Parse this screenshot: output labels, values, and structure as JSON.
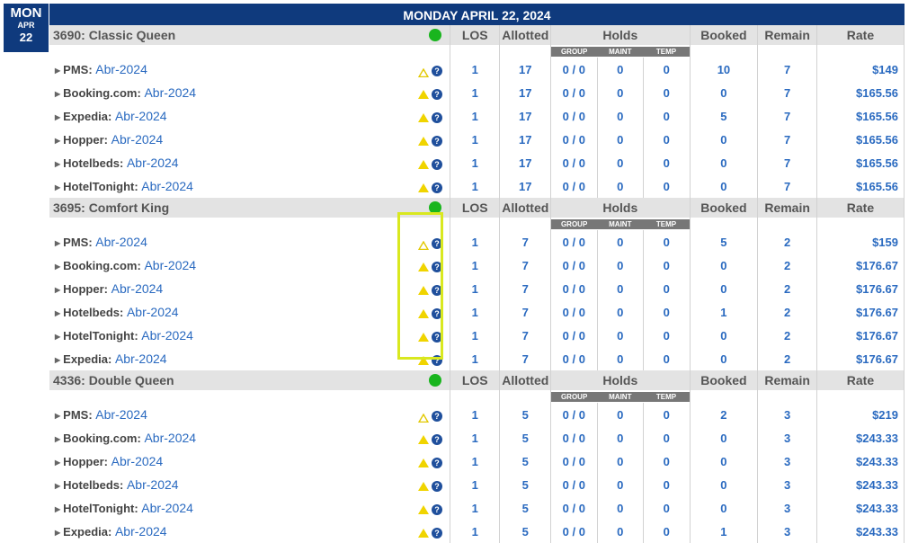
{
  "date": {
    "dow": "MON",
    "month": "APR",
    "day": "22"
  },
  "header": {
    "title": "MONDAY APRIL 22, 2024"
  },
  "columns": {
    "los": "LOS",
    "allotted": "Allotted",
    "holds": "Holds",
    "booked": "Booked",
    "remain": "Remain",
    "rate": "Rate"
  },
  "hold_subcols": {
    "group": "GROUP",
    "maint": "MAINT",
    "temp": "TEMP"
  },
  "icons": {
    "status": "green-dot-icon",
    "warning": "warning-triangle-icon",
    "help": "help-icon"
  },
  "colors": {
    "header": "#0f3a7d",
    "status_ok": "#19b51e",
    "warning": "#f0d400",
    "highlight": "#d9e81f",
    "value": "#2a6ac0"
  },
  "help_glyph": "?",
  "rooms": [
    {
      "name": "3690: Classic Queen",
      "channels": [
        {
          "name": "PMS:",
          "plan": "Abr-2024",
          "warn_outline": true,
          "los": "1",
          "allotted": "17",
          "group": "0 / 0",
          "maint": "0",
          "temp": "0",
          "booked": "10",
          "remain": "7",
          "rate": "$149"
        },
        {
          "name": "Booking.com:",
          "plan": "Abr-2024",
          "warn_outline": false,
          "los": "1",
          "allotted": "17",
          "group": "0 / 0",
          "maint": "0",
          "temp": "0",
          "booked": "0",
          "remain": "7",
          "rate": "$165.56"
        },
        {
          "name": "Expedia:",
          "plan": "Abr-2024",
          "warn_outline": false,
          "los": "1",
          "allotted": "17",
          "group": "0 / 0",
          "maint": "0",
          "temp": "0",
          "booked": "5",
          "remain": "7",
          "rate": "$165.56"
        },
        {
          "name": "Hopper:",
          "plan": "Abr-2024",
          "warn_outline": false,
          "los": "1",
          "allotted": "17",
          "group": "0 / 0",
          "maint": "0",
          "temp": "0",
          "booked": "0",
          "remain": "7",
          "rate": "$165.56"
        },
        {
          "name": "Hotelbeds:",
          "plan": "Abr-2024",
          "warn_outline": false,
          "los": "1",
          "allotted": "17",
          "group": "0 / 0",
          "maint": "0",
          "temp": "0",
          "booked": "0",
          "remain": "7",
          "rate": "$165.56"
        },
        {
          "name": "HotelTonight:",
          "plan": "Abr-2024",
          "warn_outline": false,
          "los": "1",
          "allotted": "17",
          "group": "0 / 0",
          "maint": "0",
          "temp": "0",
          "booked": "0",
          "remain": "7",
          "rate": "$165.56"
        }
      ]
    },
    {
      "name": "3695: Comfort King",
      "channels": [
        {
          "name": "PMS:",
          "plan": "Abr-2024",
          "warn_outline": true,
          "los": "1",
          "allotted": "7",
          "group": "0 / 0",
          "maint": "0",
          "temp": "0",
          "booked": "5",
          "remain": "2",
          "rate": "$159"
        },
        {
          "name": "Booking.com:",
          "plan": "Abr-2024",
          "warn_outline": false,
          "los": "1",
          "allotted": "7",
          "group": "0 / 0",
          "maint": "0",
          "temp": "0",
          "booked": "0",
          "remain": "2",
          "rate": "$176.67"
        },
        {
          "name": "Hopper:",
          "plan": "Abr-2024",
          "warn_outline": false,
          "los": "1",
          "allotted": "7",
          "group": "0 / 0",
          "maint": "0",
          "temp": "0",
          "booked": "0",
          "remain": "2",
          "rate": "$176.67"
        },
        {
          "name": "Hotelbeds:",
          "plan": "Abr-2024",
          "warn_outline": false,
          "los": "1",
          "allotted": "7",
          "group": "0 / 0",
          "maint": "0",
          "temp": "0",
          "booked": "1",
          "remain": "2",
          "rate": "$176.67"
        },
        {
          "name": "HotelTonight:",
          "plan": "Abr-2024",
          "warn_outline": false,
          "los": "1",
          "allotted": "7",
          "group": "0 / 0",
          "maint": "0",
          "temp": "0",
          "booked": "0",
          "remain": "2",
          "rate": "$176.67"
        },
        {
          "name": "Expedia:",
          "plan": "Abr-2024",
          "warn_outline": false,
          "los": "1",
          "allotted": "7",
          "group": "0 / 0",
          "maint": "0",
          "temp": "0",
          "booked": "0",
          "remain": "2",
          "rate": "$176.67"
        }
      ]
    },
    {
      "name": "4336: Double Queen",
      "channels": [
        {
          "name": "PMS:",
          "plan": "Abr-2024",
          "warn_outline": true,
          "los": "1",
          "allotted": "5",
          "group": "0 / 0",
          "maint": "0",
          "temp": "0",
          "booked": "2",
          "remain": "3",
          "rate": "$219"
        },
        {
          "name": "Booking.com:",
          "plan": "Abr-2024",
          "warn_outline": false,
          "los": "1",
          "allotted": "5",
          "group": "0 / 0",
          "maint": "0",
          "temp": "0",
          "booked": "0",
          "remain": "3",
          "rate": "$243.33"
        },
        {
          "name": "Hopper:",
          "plan": "Abr-2024",
          "warn_outline": false,
          "los": "1",
          "allotted": "5",
          "group": "0 / 0",
          "maint": "0",
          "temp": "0",
          "booked": "0",
          "remain": "3",
          "rate": "$243.33"
        },
        {
          "name": "Hotelbeds:",
          "plan": "Abr-2024",
          "warn_outline": false,
          "los": "1",
          "allotted": "5",
          "group": "0 / 0",
          "maint": "0",
          "temp": "0",
          "booked": "0",
          "remain": "3",
          "rate": "$243.33"
        },
        {
          "name": "HotelTonight:",
          "plan": "Abr-2024",
          "warn_outline": false,
          "los": "1",
          "allotted": "5",
          "group": "0 / 0",
          "maint": "0",
          "temp": "0",
          "booked": "0",
          "remain": "3",
          "rate": "$243.33"
        },
        {
          "name": "Expedia:",
          "plan": "Abr-2024",
          "warn_outline": false,
          "los": "1",
          "allotted": "5",
          "group": "0 / 0",
          "maint": "0",
          "temp": "0",
          "booked": "1",
          "remain": "3",
          "rate": "$243.33"
        }
      ]
    }
  ]
}
